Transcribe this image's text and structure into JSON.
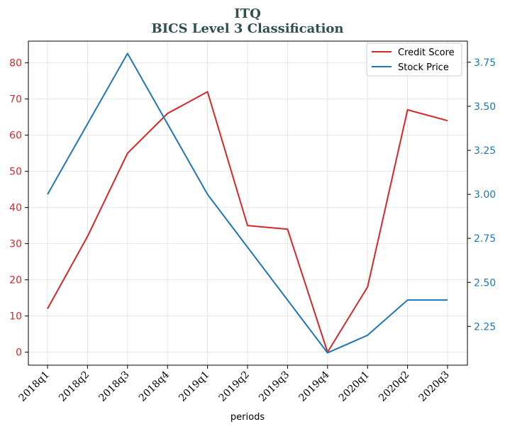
{
  "chart_data": {
    "type": "line",
    "title": "ITQ",
    "subtitle": "BICS Level 3 Classification",
    "xlabel": "periods",
    "ylabel_left": "",
    "ylabel_right": "",
    "categories": [
      "2018q1",
      "2018q2",
      "2018q3",
      "2018q4",
      "2019q1",
      "2019q2",
      "2019q3",
      "2019q4",
      "2020q1",
      "2020q2",
      "2020q3"
    ],
    "series": [
      {
        "name": "Credit Score",
        "axis": "left",
        "color": "#d62728",
        "values": [
          12,
          32,
          55,
          66,
          72,
          35,
          34,
          0,
          18,
          67,
          64
        ]
      },
      {
        "name": "Stock Price",
        "axis": "right",
        "color": "#1f77b4",
        "values": [
          3.0,
          3.4,
          3.8,
          3.4,
          3.0,
          2.7,
          2.4,
          2.1,
          2.2,
          2.4,
          2.4
        ]
      }
    ],
    "ylim_left": [
      -3.6,
      86
    ],
    "ylim_right": [
      2.03,
      3.87
    ],
    "yticks_left": [
      "0",
      "10",
      "20",
      "30",
      "40",
      "50",
      "60",
      "70",
      "80"
    ],
    "yticks_right": [
      "2.25",
      "2.50",
      "2.75",
      "3.00",
      "3.25",
      "3.50",
      "3.75"
    ],
    "grid": true,
    "legend_position": "top-right"
  }
}
